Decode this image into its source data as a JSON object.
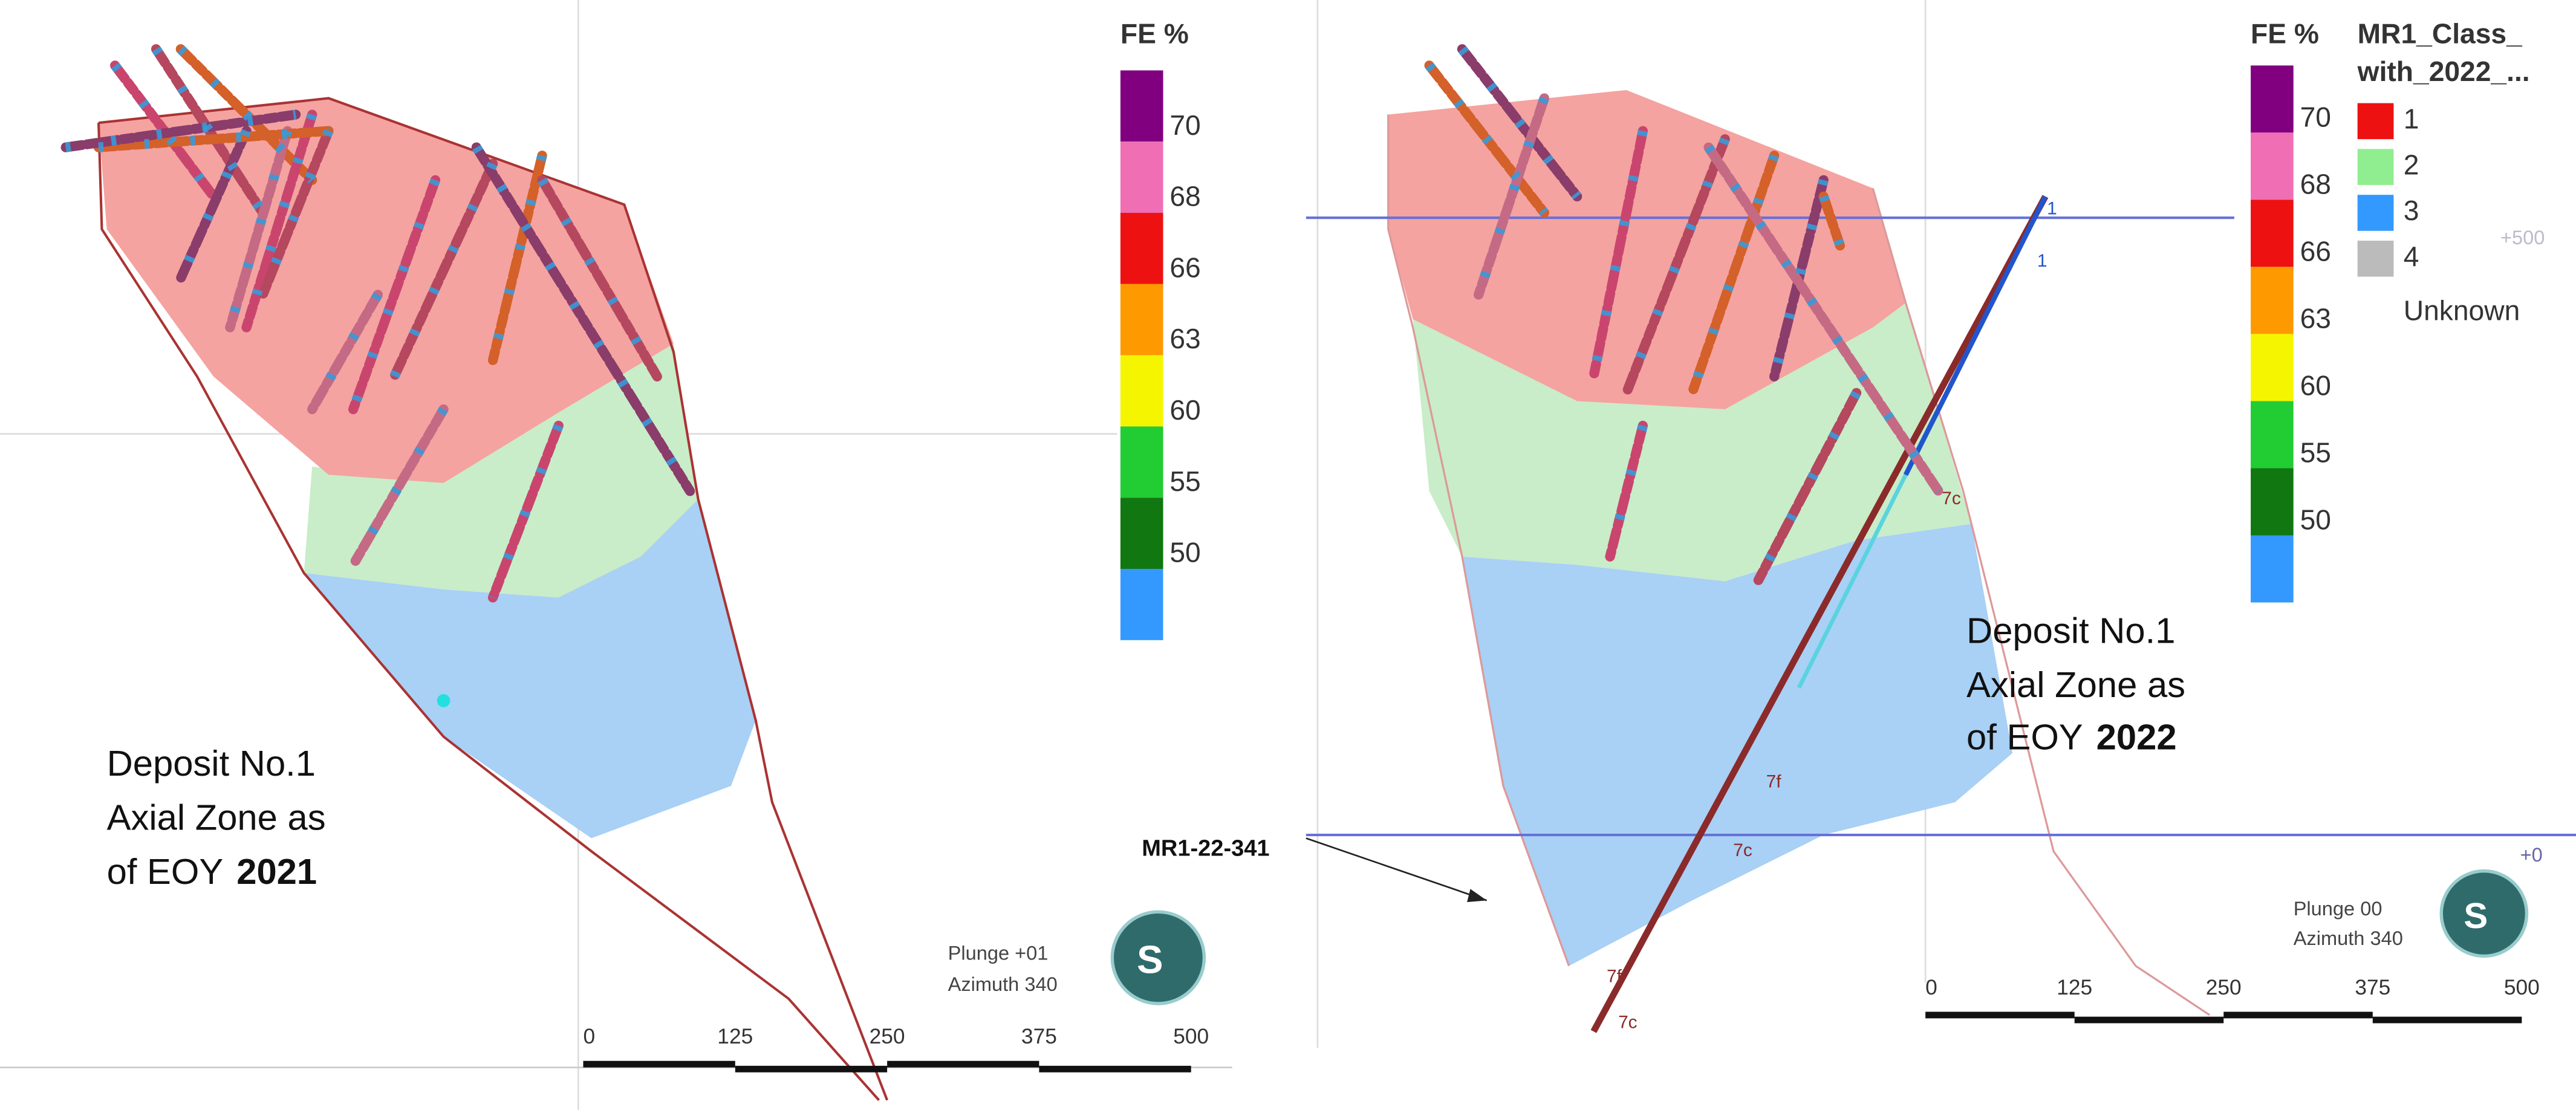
{
  "panels": [
    {
      "legend": {
        "title": "FE %",
        "labels": [
          "70",
          "68",
          "66",
          "63",
          "60",
          "55",
          "50"
        ]
      },
      "scale_labels": [
        "0",
        "125",
        "250",
        "375",
        "500"
      ],
      "orientation": [
        "Plunge +01",
        "Azimuth 340"
      ],
      "logo": "S",
      "caption": {
        "lines": [
          "Deposit No.1",
          "Axial Zone as",
          "of EOY"
        ],
        "year": "2021"
      }
    },
    {
      "legend": {
        "title": "FE %",
        "labels": [
          "70",
          "68",
          "66",
          "63",
          "60",
          "55",
          "50"
        ]
      },
      "class_legend": {
        "title": [
          "MR1_Class_",
          "with_2022_..."
        ],
        "labels": [
          "1",
          "2",
          "3",
          "4",
          "Unknown"
        ]
      },
      "scale_labels": [
        "0",
        "125",
        "250",
        "375",
        "500"
      ],
      "orientation": [
        "Plunge 00",
        "Azimuth 340"
      ],
      "logo": "S",
      "caption": {
        "lines": [
          "Deposit No.1",
          "Axial Zone as",
          "of EOY"
        ],
        "year": "2022"
      },
      "callout": "MR1-22-341",
      "elevation_labels": [
        "+500",
        "+0"
      ],
      "hole_labels": [
        "1",
        "1",
        "7c",
        "7f",
        "7c",
        "7f",
        "7c"
      ]
    }
  ]
}
